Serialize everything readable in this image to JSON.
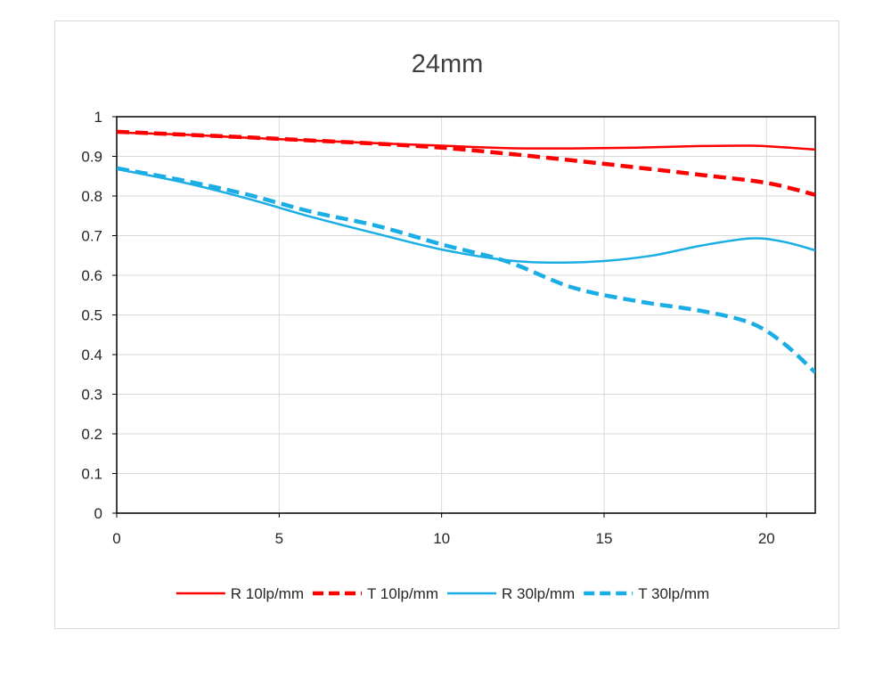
{
  "chart_data": {
    "type": "line",
    "title": "24mm",
    "xlabel": "",
    "ylabel": "",
    "xlim": [
      0,
      21.5
    ],
    "ylim": [
      0,
      1
    ],
    "x_ticks": [
      0,
      5,
      10,
      15,
      20
    ],
    "y_ticks": [
      0,
      0.1,
      0.2,
      0.3,
      0.4,
      0.5,
      0.6,
      0.7,
      0.8,
      0.9,
      1
    ],
    "x_tick_labels": [
      "0",
      "5",
      "10",
      "15",
      "20"
    ],
    "y_tick_labels": [
      "0",
      "0.1",
      "0.2",
      "0.3",
      "0.4",
      "0.5",
      "0.6",
      "0.7",
      "0.8",
      "0.9",
      "1"
    ],
    "grid": true,
    "legend_position": "bottom",
    "series": [
      {
        "name": "R 10lp/mm",
        "color": "#ff0000",
        "dash": "solid",
        "points": [
          [
            0,
            0.96
          ],
          [
            2,
            0.955
          ],
          [
            4,
            0.947
          ],
          [
            6,
            0.94
          ],
          [
            8,
            0.933
          ],
          [
            10,
            0.927
          ],
          [
            12,
            0.921
          ],
          [
            14,
            0.92
          ],
          [
            16,
            0.922
          ],
          [
            18,
            0.926
          ],
          [
            19.5,
            0.927
          ],
          [
            20.5,
            0.923
          ],
          [
            21.5,
            0.917
          ]
        ]
      },
      {
        "name": "T 10lp/mm",
        "color": "#ff0000",
        "dash": "dashed",
        "points": [
          [
            0,
            0.962
          ],
          [
            2,
            0.955
          ],
          [
            4,
            0.948
          ],
          [
            6,
            0.94
          ],
          [
            8,
            0.932
          ],
          [
            10,
            0.922
          ],
          [
            12,
            0.907
          ],
          [
            14,
            0.89
          ],
          [
            16,
            0.872
          ],
          [
            18,
            0.853
          ],
          [
            20,
            0.833
          ],
          [
            21.5,
            0.803
          ]
        ]
      },
      {
        "name": "R 30lp/mm",
        "color": "#1aaee5",
        "dash": "solid",
        "points": [
          [
            0,
            0.868
          ],
          [
            2,
            0.835
          ],
          [
            4,
            0.794
          ],
          [
            6,
            0.747
          ],
          [
            8,
            0.705
          ],
          [
            10,
            0.665
          ],
          [
            12,
            0.638
          ],
          [
            13.5,
            0.632
          ],
          [
            15,
            0.636
          ],
          [
            16.5,
            0.65
          ],
          [
            18,
            0.675
          ],
          [
            19.5,
            0.693
          ],
          [
            20.5,
            0.685
          ],
          [
            21.5,
            0.663
          ]
        ]
      },
      {
        "name": "T 30lp/mm",
        "color": "#1aaee5",
        "dash": "dashed",
        "points": [
          [
            0,
            0.87
          ],
          [
            2,
            0.84
          ],
          [
            4,
            0.804
          ],
          [
            6,
            0.76
          ],
          [
            8,
            0.725
          ],
          [
            10,
            0.678
          ],
          [
            12,
            0.635
          ],
          [
            14,
            0.57
          ],
          [
            16,
            0.535
          ],
          [
            18,
            0.51
          ],
          [
            19.5,
            0.48
          ],
          [
            20.5,
            0.43
          ],
          [
            21.5,
            0.355
          ]
        ]
      }
    ]
  }
}
